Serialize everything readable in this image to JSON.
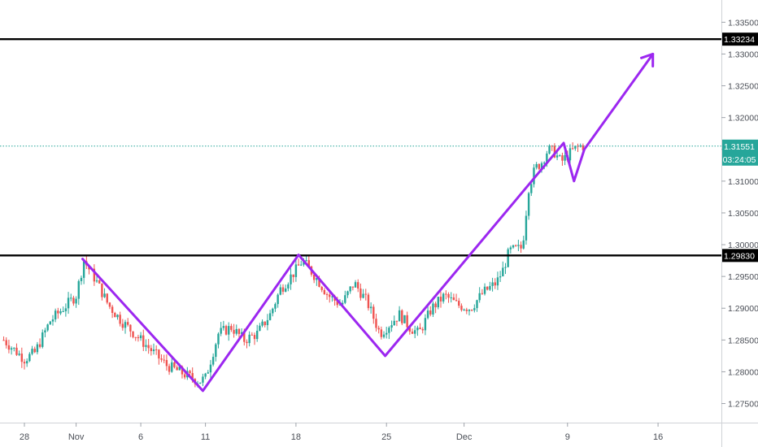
{
  "chart_data": {
    "type": "candlestick",
    "title": "",
    "xlabel": "",
    "ylabel": "",
    "ylim": [
      1.272,
      1.3385
    ],
    "x_tick_labels": [
      {
        "label": "28",
        "day": 0
      },
      {
        "label": "Nov",
        "day": 4
      },
      {
        "label": "6",
        "day": 9
      },
      {
        "label": "11",
        "day": 14
      },
      {
        "label": "18",
        "day": 21
      },
      {
        "label": "25",
        "day": 28
      },
      {
        "label": "Dec",
        "day": 34
      },
      {
        "label": "9",
        "day": 42
      },
      {
        "label": "16",
        "day": 49
      }
    ],
    "y_ticks": [
      "1.27500",
      "1.28000",
      "1.28500",
      "1.29000",
      "1.29500",
      "1.30000",
      "1.30500",
      "1.31000",
      "1.31500",
      "1.32000",
      "1.32500",
      "1.33000",
      "1.33500"
    ],
    "candles": {
      "start_day": -1.6,
      "step_day": 0.2,
      "close_anchors": [
        [
          -1.6,
          1.285
        ],
        [
          0.0,
          1.282
        ],
        [
          0.8,
          1.283
        ],
        [
          2.0,
          1.288
        ],
        [
          3.0,
          1.29
        ],
        [
          4.0,
          1.292
        ],
        [
          4.6,
          1.2975
        ],
        [
          5.5,
          1.2945
        ],
        [
          6.5,
          1.2905
        ],
        [
          7.5,
          1.288
        ],
        [
          8.5,
          1.286
        ],
        [
          10.0,
          1.283
        ],
        [
          11.0,
          1.281
        ],
        [
          12.0,
          1.28
        ],
        [
          13.0,
          1.279
        ],
        [
          13.5,
          1.2785
        ],
        [
          14.0,
          1.279
        ],
        [
          15.0,
          1.286
        ],
        [
          16.0,
          1.287
        ],
        [
          17.0,
          1.285
        ],
        [
          18.0,
          1.286
        ],
        [
          19.0,
          1.289
        ],
        [
          19.8,
          1.293
        ],
        [
          21.0,
          1.296
        ],
        [
          21.5,
          1.2975
        ],
        [
          22.5,
          1.295
        ],
        [
          23.5,
          1.292
        ],
        [
          24.5,
          1.2905
        ],
        [
          25.5,
          1.294
        ],
        [
          26.5,
          1.291
        ],
        [
          27.5,
          1.286
        ],
        [
          28.0,
          1.287
        ],
        [
          29.0,
          1.289
        ],
        [
          29.8,
          1.287
        ],
        [
          30.5,
          1.286
        ],
        [
          31.5,
          1.29
        ],
        [
          32.5,
          1.292
        ],
        [
          33.5,
          1.2905
        ],
        [
          34.5,
          1.29
        ],
        [
          35.5,
          1.2925
        ],
        [
          36.5,
          1.294
        ],
        [
          37.0,
          1.296
        ],
        [
          37.5,
          1.299
        ],
        [
          38.5,
          1.2995
        ],
        [
          39.0,
          1.309
        ],
        [
          39.5,
          1.312
        ],
        [
          40.0,
          1.313
        ],
        [
          40.5,
          1.315
        ],
        [
          41.0,
          1.3145
        ],
        [
          41.5,
          1.313
        ],
        [
          42.0,
          1.314
        ],
        [
          42.5,
          1.315
        ],
        [
          43.0,
          1.3155
        ],
        [
          43.3,
          1.3155
        ]
      ],
      "colors": {
        "up": "#26a69a",
        "down": "#ef5350"
      }
    },
    "horizontal_levels": [
      {
        "value": 1.33234,
        "label": "1.33234",
        "style": "solid-black"
      },
      {
        "value": 1.2983,
        "label": "1.29830",
        "style": "solid-black"
      },
      {
        "value": 1.31551,
        "label": "1.31551",
        "style": "dotted-teal",
        "countdown": "03:24:05"
      }
    ],
    "zigzag": {
      "color": "#9c27f0",
      "points": [
        [
          4.5,
          1.29775
        ],
        [
          13.8,
          1.277
        ],
        [
          21.2,
          1.2984
        ],
        [
          27.9,
          1.2825
        ],
        [
          41.7,
          1.316
        ],
        [
          42.5,
          1.31
        ],
        [
          43.3,
          1.315
        ],
        [
          48.6,
          1.33
        ]
      ]
    },
    "grid": false
  }
}
